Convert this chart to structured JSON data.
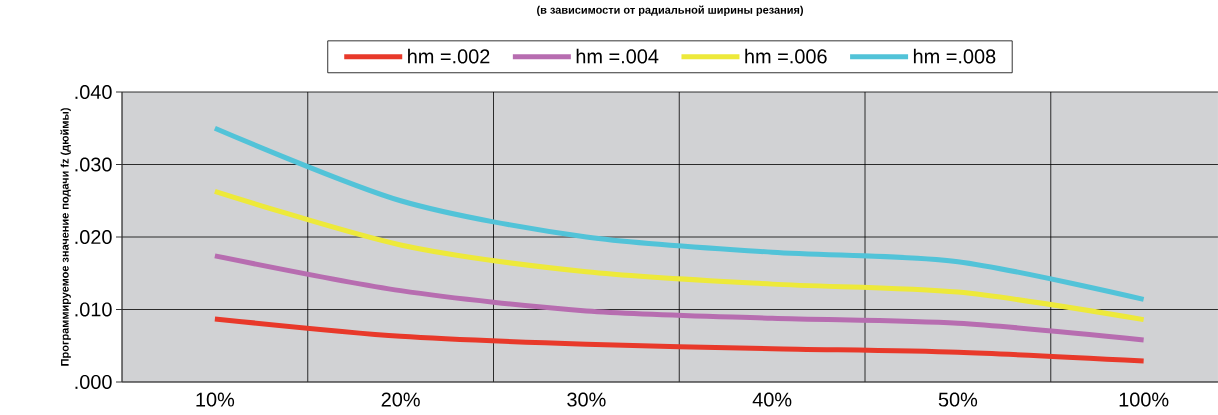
{
  "chart_data": {
    "type": "line",
    "title": "(в зависимости от радиальной ширины резания)",
    "ylabel": "Программируемое значение подачи fz (дюймы)",
    "categories": [
      "10%",
      "20%",
      "30%",
      "40%",
      "50%",
      "100%"
    ],
    "series": [
      {
        "name": "hm =.002",
        "color": "#e8392a",
        "values": [
          0.0087,
          0.0063,
          0.0052,
          0.0046,
          0.0041,
          0.0029
        ]
      },
      {
        "name": "hm =.004",
        "color": "#b76db0",
        "values": [
          0.0174,
          0.0126,
          0.0098,
          0.0088,
          0.0081,
          0.0058
        ]
      },
      {
        "name": "hm =.006",
        "color": "#ede93a",
        "values": [
          0.0263,
          0.0189,
          0.0152,
          0.0135,
          0.0124,
          0.0086
        ]
      },
      {
        "name": "hm =.008",
        "color": "#52c3d8",
        "values": [
          0.035,
          0.025,
          0.02,
          0.0179,
          0.0166,
          0.0114
        ]
      }
    ],
    "ylim": [
      0,
      0.04
    ],
    "yticks": [
      {
        "value": 0,
        "label": ".000"
      },
      {
        "value": 0.01,
        "label": ".010"
      },
      {
        "value": 0.02,
        "label": ".020"
      },
      {
        "value": 0.03,
        "label": ".030"
      },
      {
        "value": 0.04,
        "label": ".040"
      }
    ],
    "grid": true,
    "legend": "top",
    "marker": "none",
    "line_style": "solid"
  }
}
